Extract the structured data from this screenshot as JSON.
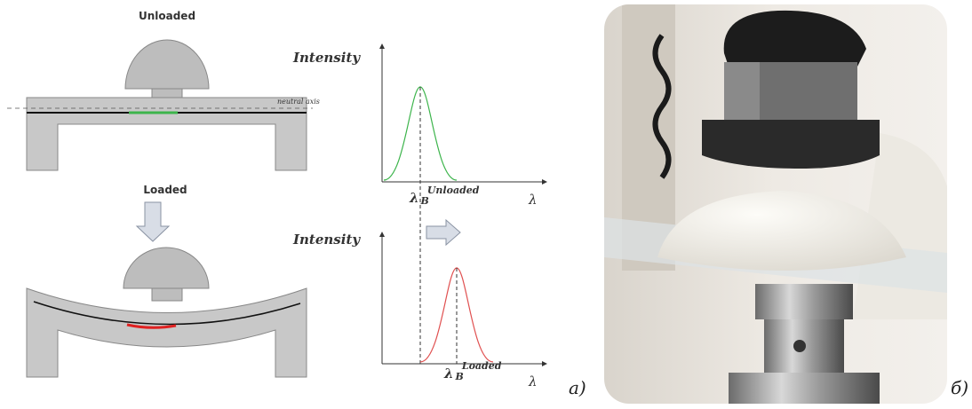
{
  "left_diagram": {
    "unloaded_label": "Unloaded",
    "neutral_axis_label": "neutral axis",
    "loaded_label": "Loaded"
  },
  "spectra": {
    "top": {
      "y_label": "Intensity",
      "x_label": "λ",
      "peak_label": {
        "symbol": "λ",
        "subscript": "B",
        "superscript": "Unloaded"
      }
    },
    "bottom": {
      "y_label": "Intensity",
      "x_label": "λ",
      "peak_label": {
        "symbol": "λ",
        "subscript": "B",
        "superscript": "Loaded"
      }
    }
  },
  "panel_labels": {
    "a": "а)",
    "b": "б)"
  }
}
